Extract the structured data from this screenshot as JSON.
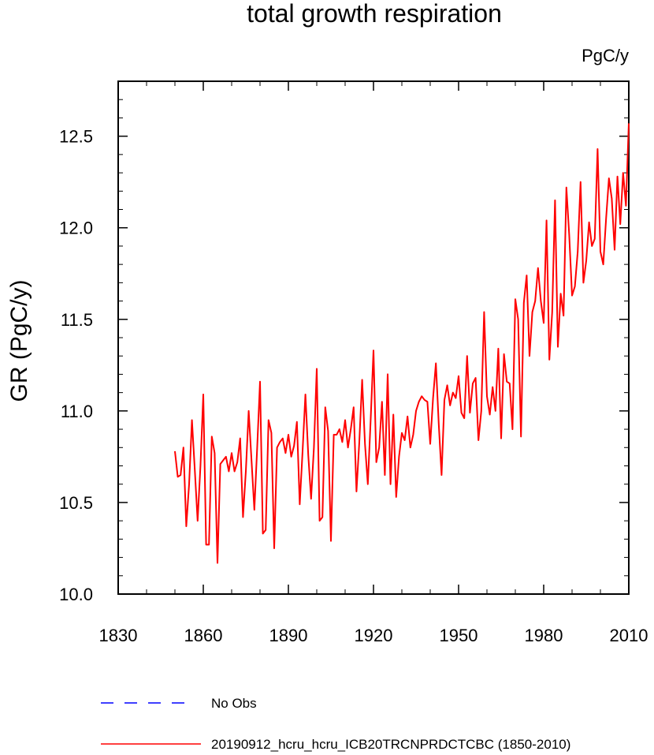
{
  "chart_data": {
    "type": "line",
    "title": "total growth respiration",
    "units": "PgC/y",
    "ylabel": "GR  (PgC/y)",
    "xlabel": "",
    "xlim": [
      1830,
      2010
    ],
    "ylim": [
      10.0,
      12.8
    ],
    "x_ticks": [
      1830,
      1860,
      1890,
      1920,
      1950,
      1980,
      2010
    ],
    "y_ticks": [
      10.0,
      10.5,
      11.0,
      11.5,
      12.0,
      12.5
    ],
    "x_tick_labels": [
      "1830",
      "1860",
      "1890",
      "1920",
      "1950",
      "1980",
      "2010"
    ],
    "y_tick_labels": [
      "10.0",
      "10.5",
      "11.0",
      "11.5",
      "12.0",
      "12.5"
    ],
    "grid": false,
    "legend_position": "bottom",
    "legend": [
      {
        "label": "No Obs",
        "color": "#0000ff",
        "style": "dashed"
      },
      {
        "label": "20190912_hcru_hcru_ICB20TRCNPRDCTCBC (1850-2010)",
        "color": "#ff0000",
        "style": "solid"
      }
    ],
    "series": [
      {
        "name": "20190912_hcru_hcru_ICB20TRCNPRDCTCBC (1850-2010)",
        "color": "#ff0000",
        "x_start": 1850,
        "x_step": 1,
        "values": [
          10.78,
          10.64,
          10.65,
          10.8,
          10.37,
          10.6,
          10.95,
          10.68,
          10.4,
          10.7,
          11.09,
          10.27,
          10.27,
          10.86,
          10.77,
          10.17,
          10.71,
          10.73,
          10.75,
          10.67,
          10.77,
          10.67,
          10.72,
          10.85,
          10.42,
          10.67,
          11.0,
          10.73,
          10.46,
          10.8,
          11.16,
          10.33,
          10.35,
          10.95,
          10.88,
          10.25,
          10.8,
          10.83,
          10.85,
          10.77,
          10.87,
          10.75,
          10.81,
          10.94,
          10.49,
          10.78,
          11.09,
          10.76,
          10.52,
          10.8,
          11.23,
          10.4,
          10.42,
          11.02,
          10.89,
          10.29,
          10.87,
          10.87,
          10.9,
          10.83,
          10.95,
          10.8,
          10.9,
          11.02,
          10.56,
          10.83,
          11.17,
          10.82,
          10.6,
          10.95,
          11.33,
          10.72,
          10.8,
          11.05,
          10.65,
          11.2,
          10.6,
          10.98,
          10.53,
          10.75,
          10.88,
          10.84,
          10.97,
          10.8,
          10.87,
          11.0,
          11.05,
          11.08,
          11.06,
          11.05,
          10.82,
          11.07,
          11.26,
          10.93,
          10.65,
          11.06,
          11.14,
          11.03,
          11.1,
          11.07,
          11.19,
          10.99,
          10.96,
          11.3,
          10.99,
          11.15,
          11.18,
          10.84,
          11.0,
          11.54,
          11.08,
          10.98,
          11.13,
          11.0,
          11.34,
          10.85,
          11.31,
          11.16,
          11.15,
          10.9,
          11.61,
          11.5,
          10.86,
          11.59,
          11.74,
          11.3,
          11.54,
          11.6,
          11.78,
          11.6,
          11.48,
          12.04,
          11.28,
          11.54,
          12.15,
          11.35,
          11.64,
          11.52,
          12.22,
          11.96,
          11.63,
          11.68,
          11.87,
          12.25,
          11.7,
          11.82,
          12.03,
          11.9,
          11.94,
          12.43,
          11.87,
          11.8,
          12.05,
          12.27,
          12.16,
          11.88,
          12.28,
          12.02,
          12.3,
          12.12,
          12.57
        ]
      }
    ]
  }
}
